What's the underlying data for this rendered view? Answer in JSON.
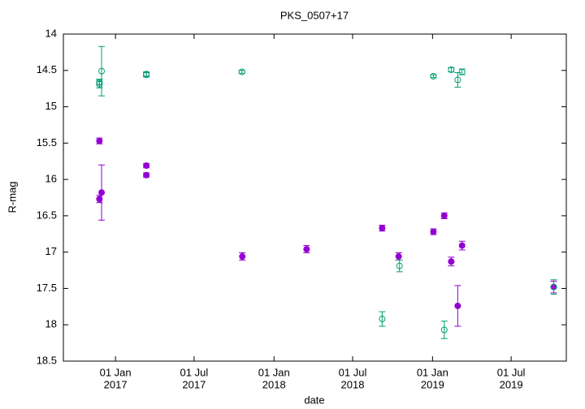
{
  "chart_data": {
    "type": "scatter",
    "title": "PKS_0507+17",
    "xlabel": "date",
    "ylabel": "R-mag",
    "xlim": [
      "2016-09-03",
      "2019-11-05"
    ],
    "xticks": [
      {
        "value": "2017-01-01",
        "label": [
          "01 Jan",
          "2017"
        ]
      },
      {
        "value": "2017-07-01",
        "label": [
          "01 Jul",
          "2017"
        ]
      },
      {
        "value": "2018-01-01",
        "label": [
          "01 Jan",
          "2018"
        ]
      },
      {
        "value": "2018-07-01",
        "label": [
          "01 Jul",
          "2018"
        ]
      },
      {
        "value": "2019-01-01",
        "label": [
          "01 Jan",
          "2019"
        ]
      },
      {
        "value": "2019-07-01",
        "label": [
          "01 Jul",
          "2019"
        ]
      }
    ],
    "ylim": [
      18.5,
      14
    ],
    "yticks": [
      14,
      14.5,
      15,
      15.5,
      16,
      16.5,
      17,
      17.5,
      18,
      18.5
    ],
    "series": [
      {
        "color": "#9400d3",
        "filled": true,
        "x": [
          "2016-11-25",
          "2016-11-25",
          "2016-11-30",
          "2017-03-13",
          "2017-03-13",
          "2017-10-20",
          "2018-03-17",
          "2018-09-07",
          "2018-10-15",
          "2019-01-03",
          "2019-01-28",
          "2019-02-13",
          "2019-02-28",
          "2019-03-10",
          "2019-10-07"
        ],
        "values": [
          15.47,
          16.27,
          16.18,
          15.81,
          15.94,
          17.06,
          16.96,
          16.67,
          17.06,
          16.72,
          16.5,
          17.13,
          17.74,
          16.91,
          17.48
        ],
        "errors": [
          0.04,
          0.05,
          0.38,
          0.03,
          0.03,
          0.05,
          0.05,
          0.04,
          0.05,
          0.04,
          0.04,
          0.06,
          0.28,
          0.06,
          0.08
        ]
      },
      {
        "color": "#009e73",
        "filled": false,
        "x": [
          "2016-11-25",
          "2016-11-25",
          "2016-11-30",
          "2017-03-13",
          "2017-03-13",
          "2017-10-19",
          "2018-09-07",
          "2018-10-17",
          "2019-01-03",
          "2019-01-28",
          "2019-02-13",
          "2019-02-28",
          "2019-03-10",
          "2019-10-07"
        ],
        "values": [
          14.69,
          14.66,
          14.51,
          14.56,
          14.55,
          14.52,
          17.92,
          17.19,
          14.58,
          18.07,
          14.49,
          14.63,
          14.52,
          17.48
        ],
        "errors": [
          0.05,
          0.04,
          0.34,
          0.03,
          0.03,
          0.02,
          0.1,
          0.08,
          0.02,
          0.12,
          0.03,
          0.1,
          0.04,
          0.1
        ]
      }
    ]
  }
}
